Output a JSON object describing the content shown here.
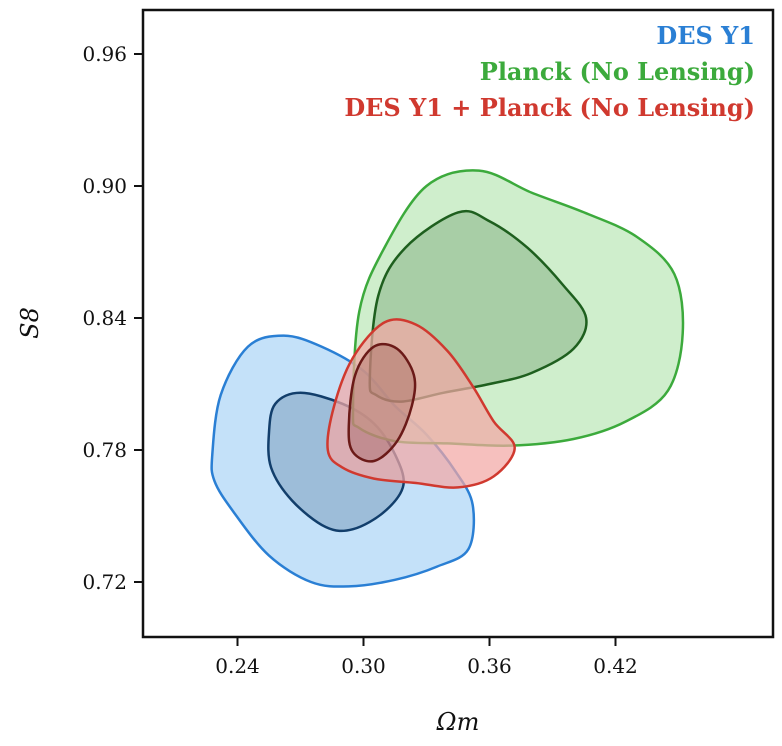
{
  "chart_data": {
    "type": "contour",
    "xlabel": "Ωm",
    "ylabel": "S8",
    "xlim": [
      0.195,
      0.495
    ],
    "ylim": [
      0.695,
      0.98
    ],
    "xticks": [
      "0.24",
      "0.30",
      "0.36",
      "0.42"
    ],
    "yticks": [
      "0.72",
      "0.78",
      "0.84",
      "0.90",
      "0.96"
    ],
    "legend_position": "top-right",
    "grid": false,
    "series": [
      {
        "name": "DES Y1",
        "color": "#2a7fd4",
        "fill": "#add5f7",
        "inner_color": "#123e6b",
        "contours": {
          "outer": [
            [
              0.228,
              0.778
            ],
            [
              0.232,
              0.805
            ],
            [
              0.245,
              0.827
            ],
            [
              0.262,
              0.832
            ],
            [
              0.28,
              0.827
            ],
            [
              0.3,
              0.816
            ],
            [
              0.315,
              0.8
            ],
            [
              0.33,
              0.787
            ],
            [
              0.344,
              0.77
            ],
            [
              0.352,
              0.755
            ],
            [
              0.35,
              0.735
            ],
            [
              0.335,
              0.727
            ],
            [
              0.315,
              0.721
            ],
            [
              0.293,
              0.718
            ],
            [
              0.275,
              0.72
            ],
            [
              0.255,
              0.732
            ],
            [
              0.238,
              0.752
            ],
            [
              0.229,
              0.766
            ]
          ],
          "inner": [
            [
              0.255,
              0.788
            ],
            [
              0.258,
              0.801
            ],
            [
              0.27,
              0.806
            ],
            [
              0.29,
              0.801
            ],
            [
              0.305,
              0.792
            ],
            [
              0.315,
              0.778
            ],
            [
              0.319,
              0.764
            ],
            [
              0.31,
              0.752
            ],
            [
              0.295,
              0.744
            ],
            [
              0.282,
              0.745
            ],
            [
              0.266,
              0.757
            ],
            [
              0.256,
              0.772
            ]
          ]
        }
      },
      {
        "name": "Planck (No Lensing)",
        "color": "#3caa3c",
        "fill": "#bde8b8",
        "inner_color": "#1e5f1e",
        "contours": {
          "outer": [
            [
              0.295,
              0.798
            ],
            [
              0.298,
              0.843
            ],
            [
              0.31,
              0.872
            ],
            [
              0.33,
              0.9
            ],
            [
              0.355,
              0.907
            ],
            [
              0.38,
              0.897
            ],
            [
              0.405,
              0.888
            ],
            [
              0.43,
              0.877
            ],
            [
              0.448,
              0.86
            ],
            [
              0.452,
              0.833
            ],
            [
              0.445,
              0.807
            ],
            [
              0.425,
              0.793
            ],
            [
              0.4,
              0.785
            ],
            [
              0.37,
              0.782
            ],
            [
              0.34,
              0.783
            ],
            [
              0.315,
              0.784
            ],
            [
              0.298,
              0.79
            ]
          ],
          "inner": [
            [
              0.303,
              0.812
            ],
            [
              0.307,
              0.85
            ],
            [
              0.32,
              0.872
            ],
            [
              0.345,
              0.888
            ],
            [
              0.36,
              0.884
            ],
            [
              0.378,
              0.872
            ],
            [
              0.395,
              0.855
            ],
            [
              0.406,
              0.84
            ],
            [
              0.4,
              0.826
            ],
            [
              0.38,
              0.815
            ],
            [
              0.36,
              0.81
            ],
            [
              0.338,
              0.806
            ],
            [
              0.318,
              0.802
            ],
            [
              0.306,
              0.805
            ]
          ]
        }
      },
      {
        "name": "DES Y1 + Planck (No Lensing)",
        "color": "#d0392f",
        "fill": "#f2a8a5",
        "inner_color": "#6b1a18",
        "contours": {
          "outer": [
            [
              0.283,
              0.78
            ],
            [
              0.286,
              0.8
            ],
            [
              0.295,
              0.822
            ],
            [
              0.31,
              0.838
            ],
            [
              0.325,
              0.837
            ],
            [
              0.34,
              0.825
            ],
            [
              0.352,
              0.809
            ],
            [
              0.362,
              0.793
            ],
            [
              0.372,
              0.781
            ],
            [
              0.362,
              0.768
            ],
            [
              0.345,
              0.763
            ],
            [
              0.325,
              0.765
            ],
            [
              0.305,
              0.767
            ],
            [
              0.29,
              0.772
            ]
          ],
          "inner": [
            [
              0.293,
              0.791
            ],
            [
              0.296,
              0.814
            ],
            [
              0.305,
              0.827
            ],
            [
              0.316,
              0.826
            ],
            [
              0.324,
              0.814
            ],
            [
              0.323,
              0.8
            ],
            [
              0.316,
              0.784
            ],
            [
              0.305,
              0.775
            ],
            [
              0.295,
              0.779
            ]
          ]
        }
      }
    ]
  }
}
